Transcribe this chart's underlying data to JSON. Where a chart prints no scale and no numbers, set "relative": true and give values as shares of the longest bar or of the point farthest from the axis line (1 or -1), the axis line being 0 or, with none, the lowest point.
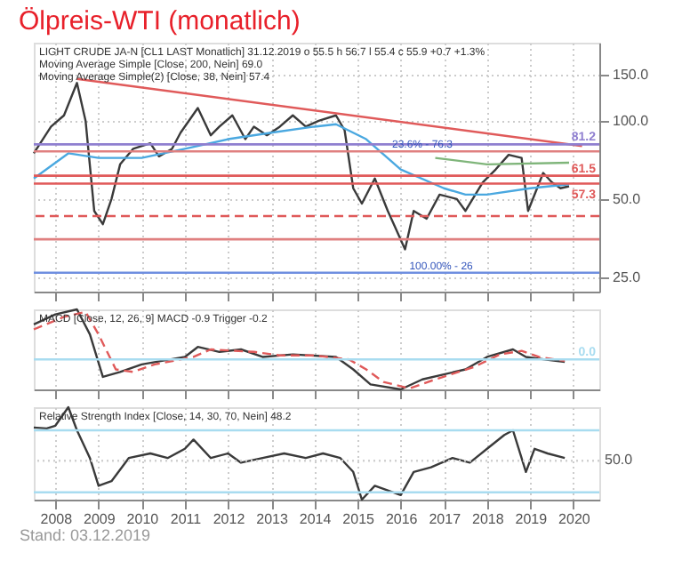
{
  "chart_data": [
    {
      "type": "line",
      "title": "Ölpreis-WTI (monatlich)",
      "log": true,
      "grid": true,
      "tick_labels": "y",
      "annotations": [
        "LIGHT CRUDE JA-N [CL1 LAST Monatlich] 31.12.2019 o 55.5 h 56.7 l 55.4 c 55.9 +0.7 +1.3%",
        "Moving Average Simple [Close, 200, Nein] 69.0",
        "Moving Average Simple(2) [Close, 38, Nein] 57.4",
        {
          "text": "23.6% - 76.3",
          "x": 2015.8,
          "y": 76.3
        },
        {
          "text": "100.00% - 26",
          "x": 2016.2,
          "y": 26
        }
      ],
      "xlim": [
        2007.5,
        2020.6
      ],
      "xticks": [
        2008,
        2009,
        2010,
        2011,
        2012,
        2013,
        2014,
        2015,
        2016,
        2017,
        2018,
        2019,
        2020
      ],
      "ylim": [
        22,
        200
      ],
      "yticks": [
        {
          "value": 25,
          "label": "25.0"
        },
        {
          "value": 50,
          "label": "50.0"
        },
        {
          "value": 100,
          "label": "100.0"
        },
        {
          "value": 150,
          "label": "150.0"
        }
      ],
      "series": [
        {
          "color": "#3a3a3a",
          "x": [
            2007.5,
            2007.9,
            2008.2,
            2008.5,
            2008.7,
            2008.9,
            2009.1,
            2009.3,
            2009.5,
            2009.8,
            2010.2,
            2010.4,
            2010.7,
            2010.9,
            2011.3,
            2011.6,
            2011.8,
            2012.1,
            2012.4,
            2012.6,
            2012.9,
            2013.2,
            2013.5,
            2013.8,
            2014.1,
            2014.5,
            2014.7,
            2014.9,
            2015.1,
            2015.4,
            2015.7,
            2015.9,
            2016.1,
            2016.3,
            2016.6,
            2016.9,
            2017.3,
            2017.5,
            2017.9,
            2018.2,
            2018.5,
            2018.8,
            2018.95,
            2019.3,
            2019.5,
            2019.7,
            2019.9
          ],
          "values": [
            75,
            95,
            105,
            140,
            100,
            45,
            40,
            50,
            68,
            78,
            82,
            73,
            78,
            90,
            112,
            88,
            95,
            105,
            85,
            95,
            88,
            95,
            105,
            95,
            100,
            105,
            92,
            55,
            48,
            60,
            45,
            38,
            32,
            45,
            42,
            52,
            50,
            45,
            58,
            65,
            74,
            72,
            45,
            63,
            58,
            55,
            56
          ]
        },
        {
          "color": "#4aa8e0",
          "x": [
            2007.5,
            2008.3,
            2009.0,
            2010.0,
            2011.0,
            2012.0,
            2013.0,
            2014.0,
            2014.5,
            2015.2,
            2016.0,
            2017.0,
            2017.5,
            2018.0,
            2019.0,
            2019.9
          ],
          "values": [
            60,
            75,
            72,
            72,
            78,
            85,
            90,
            95,
            97,
            85,
            65,
            55,
            52,
            52,
            55,
            57
          ]
        },
        {
          "color": "#7fb57a",
          "x": [
            2016.8,
            2018.0,
            2019.9
          ],
          "values": [
            72,
            68,
            69
          ]
        },
        {
          "color": "#e05a5a",
          "x": [
            2008.5,
            2020.2
          ],
          "values": [
            145,
            80
          ]
        }
      ],
      "ref_lines": [
        {
          "axis": "y",
          "value": 81.2,
          "label": "81.2",
          "color": "#8f7fd0"
        },
        {
          "axis": "y",
          "value": 76.3,
          "color": "#e08080"
        },
        {
          "axis": "y",
          "value": 61.5,
          "label": "61.5",
          "color": "#e05a5a"
        },
        {
          "axis": "y",
          "value": 57.3,
          "label": "57.3",
          "color": "#e05a5a"
        },
        {
          "axis": "y",
          "value": 43,
          "color": "#e05a5a",
          "line_style": "dashed"
        },
        {
          "axis": "y",
          "value": 35,
          "color": "#e08080"
        },
        {
          "axis": "y",
          "value": 26,
          "color": "#6f8fe0"
        }
      ]
    },
    {
      "type": "line",
      "relative": true,
      "grid": "x",
      "tick_labels": false,
      "annotations": [
        "MACD [Close, 12, 26, 9] MACD -0.9 Trigger -0.2"
      ],
      "xlim": [
        2007.5,
        2020.6
      ],
      "xticks": [
        2008,
        2009,
        2010,
        2011,
        2012,
        2013,
        2014,
        2015,
        2016,
        2017,
        2018,
        2019,
        2020
      ],
      "series": [
        {
          "color": "#3a3a3a",
          "x": [
            2007.5,
            2008.0,
            2008.5,
            2008.8,
            2009.1,
            2009.5,
            2010.0,
            2011.0,
            2011.3,
            2011.8,
            2012.3,
            2012.8,
            2013.5,
            2014.5,
            2014.9,
            2015.3,
            2016.0,
            2016.5,
            2017.5,
            2018.0,
            2018.6,
            2018.9,
            2019.5,
            2019.8
          ],
          "values": [
            0.7,
            0.9,
            1.0,
            0.5,
            -0.35,
            -0.25,
            -0.1,
            0.05,
            0.25,
            0.15,
            0.2,
            0.05,
            0.1,
            0.05,
            -0.2,
            -0.5,
            -0.6,
            -0.4,
            -0.2,
            0.05,
            0.2,
            0.05,
            -0.02,
            -0.05
          ]
        },
        {
          "color": "#e05a5a",
          "line_style": "dashed",
          "x": [
            2007.5,
            2008.2,
            2008.7,
            2009.0,
            2009.4,
            2009.8,
            2010.3,
            2011.2,
            2011.6,
            2012.0,
            2012.6,
            2013.2,
            2014.0,
            2014.8,
            2015.2,
            2015.6,
            2016.2,
            2016.8,
            2017.7,
            2018.3,
            2018.8,
            2019.2,
            2019.8
          ],
          "values": [
            0.6,
            0.85,
            0.95,
            0.5,
            -0.2,
            -0.25,
            -0.1,
            0.05,
            0.2,
            0.18,
            0.15,
            0.08,
            0.08,
            0.0,
            -0.2,
            -0.45,
            -0.58,
            -0.4,
            -0.15,
            0.1,
            0.17,
            0.05,
            -0.03
          ]
        }
      ],
      "ref_lines": [
        {
          "axis": "y",
          "value": 0,
          "label": "0.0",
          "color": "#a8dcf0"
        }
      ]
    },
    {
      "type": "line",
      "relative": true,
      "grid": "x",
      "annotations": [
        "Relative Strength Index [Close, 14, 30, 70, Nein] 48.2",
        "50.0",
        "Stand: 03.12.2019"
      ],
      "xlim": [
        2007.5,
        2020.6
      ],
      "xticks": [
        2008,
        2009,
        2010,
        2011,
        2012,
        2013,
        2014,
        2015,
        2016,
        2017,
        2018,
        2019,
        2020
      ],
      "series": [
        {
          "color": "#3a3a3a",
          "x": [
            2007.5,
            2007.8,
            2008.0,
            2008.3,
            2008.5,
            2008.8,
            2009.0,
            2009.3,
            2009.7,
            2010.2,
            2010.6,
            2011.0,
            2011.2,
            2011.6,
            2012.0,
            2012.3,
            2012.8,
            2013.3,
            2013.8,
            2014.2,
            2014.6,
            2014.9,
            2015.1,
            2015.4,
            2015.7,
            2016.0,
            2016.3,
            2016.7,
            2017.2,
            2017.6,
            2018.0,
            2018.4,
            2018.6,
            2018.9,
            2019.1,
            2019.4,
            2019.8
          ],
          "values": [
            0.78,
            0.77,
            0.8,
            1.0,
            0.75,
            0.45,
            0.15,
            0.2,
            0.45,
            0.5,
            0.45,
            0.55,
            0.65,
            0.45,
            0.5,
            0.4,
            0.45,
            0.5,
            0.45,
            0.5,
            0.45,
            0.3,
            0.0,
            0.15,
            0.1,
            0.05,
            0.3,
            0.35,
            0.45,
            0.4,
            0.55,
            0.7,
            0.75,
            0.3,
            0.55,
            0.5,
            0.45
          ]
        }
      ],
      "ref_lines": [
        {
          "axis": "y",
          "value": 0.75,
          "color": "#a8dcf0"
        },
        {
          "axis": "y",
          "value": 0.08,
          "color": "#a8dcf0"
        },
        {
          "axis": "y",
          "value": 0.42,
          "color": "#d0d0d0",
          "line_style": "dotted"
        }
      ]
    }
  ]
}
